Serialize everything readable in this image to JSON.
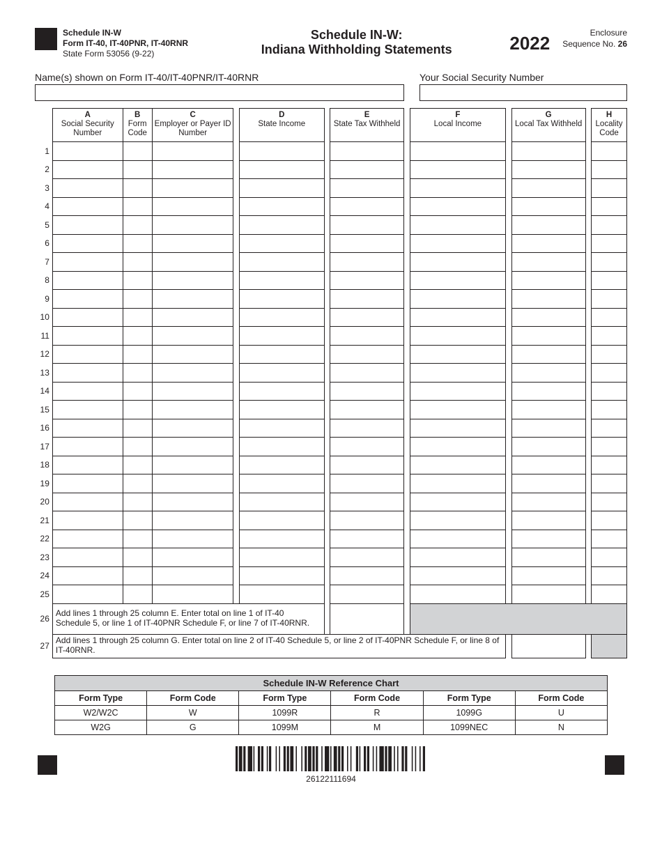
{
  "header": {
    "schedule_label": "Schedule IN-W",
    "form_label": "Form IT-40, IT-40PNR, IT-40RNR",
    "state_form": "State Form 53056 (9-22)",
    "title1": "Schedule IN-W:",
    "title2": "Indiana Withholding Statements",
    "year": "2022",
    "enclosure": "Enclosure",
    "sequence_label": "Sequence No.",
    "sequence_no": "26"
  },
  "name_row": {
    "name_label": "Name(s) shown on Form IT-40/IT-40PNR/IT-40RNR",
    "ssn_label": "Your Social Security Number"
  },
  "columns": {
    "A": {
      "letter": "A",
      "label": "Social Security Number"
    },
    "B": {
      "letter": "B",
      "label": "Form Code"
    },
    "C": {
      "letter": "C",
      "label": "Employer or Payer ID Number"
    },
    "D": {
      "letter": "D",
      "label": "State Income"
    },
    "E": {
      "letter": "E",
      "label": "State Tax Withheld"
    },
    "F": {
      "letter": "F",
      "label": "Local Income"
    },
    "G": {
      "letter": "G",
      "label": "Local Tax Withheld"
    },
    "H": {
      "letter": "H",
      "label": "Locality Code"
    }
  },
  "row_count": 25,
  "line26": {
    "num": "26",
    "text": "Add lines 1 through 25 column E. Enter total on line 1 of IT-40 Schedule 5, or line 1 of IT-40PNR Schedule F, or line 7 of IT-40RNR."
  },
  "line27": {
    "num": "27",
    "text": "Add lines 1 through 25 column G. Enter total on line 2 of IT-40 Schedule 5, or line 2 of IT-40PNR Schedule F, or line 8 of IT-40RNR."
  },
  "ref_chart": {
    "title": "Schedule IN-W Reference Chart",
    "headers": [
      "Form Type",
      "Form Code",
      "Form Type",
      "Form Code",
      "Form Type",
      "Form Code"
    ],
    "rows": [
      [
        "W2/W2C",
        "W",
        "1099R",
        "R",
        "1099G",
        "U"
      ],
      [
        "W2G",
        "G",
        "1099M",
        "M",
        "1099NEC",
        "N"
      ]
    ]
  },
  "barcode_number": "26122111694",
  "style": {
    "border_color": "#231f20",
    "grey_fill": "#d2d3d5",
    "background": "#ffffff"
  }
}
